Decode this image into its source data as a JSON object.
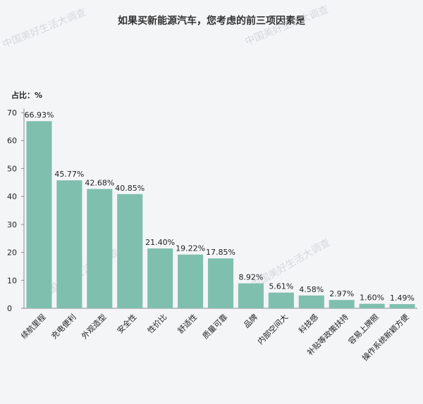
{
  "chart_data": {
    "type": "bar",
    "title": "如果买新能源汽车，您考虑的前三项因素是",
    "ylabel": "占比：%",
    "xlabel": "",
    "ylim": [
      0,
      70
    ],
    "yticks": [
      0,
      10,
      20,
      30,
      40,
      50,
      60,
      70
    ],
    "grid": false,
    "categories": [
      "续航里程",
      "充电便利",
      "外观造型",
      "安全性",
      "性价比",
      "舒适性",
      "质量可靠",
      "品牌",
      "内部空间大",
      "科技感",
      "补贴等政策扶持",
      "容易上牌照",
      "操作系统新颖方便"
    ],
    "values": [
      66.93,
      45.77,
      42.68,
      40.85,
      21.4,
      19.22,
      17.85,
      8.92,
      5.61,
      4.58,
      2.97,
      1.6,
      1.49
    ],
    "data_labels": [
      "66.93%",
      "45.77%",
      "42.68%",
      "40.85%",
      "21.40%",
      "19.22%",
      "17.85%",
      "8.92%",
      "5.61%",
      "4.58%",
      "2.97%",
      "1.60%",
      "1.49%"
    ],
    "bar_color": "#7fbfad"
  },
  "watermark": "中国美好生活大调查"
}
